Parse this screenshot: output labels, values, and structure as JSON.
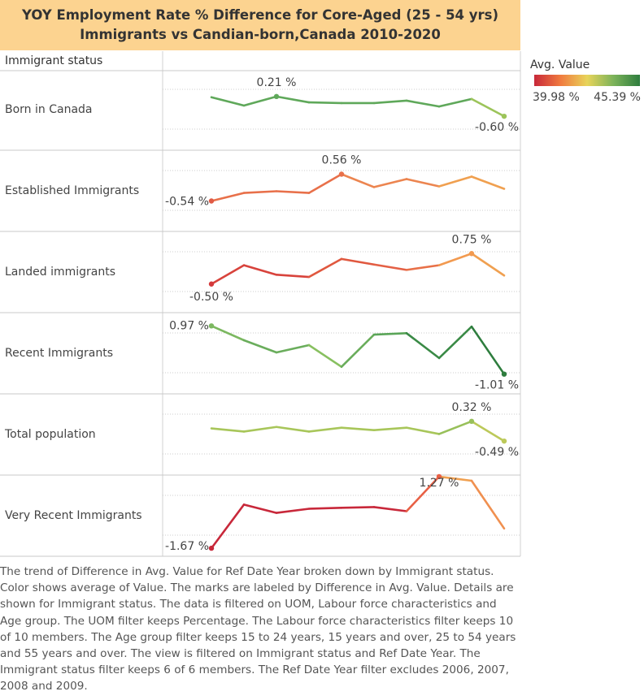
{
  "chart_data": {
    "type": "sparkline",
    "title": "YOY Employment Rate % Difference for Core-Aged (25 - 54 yrs) Immigrants vs Candian-born,Canada 2010-2020",
    "row_header": "Immigrant status",
    "description": "The trend of Difference in Avg. Value for Ref Date Year broken down by Immigrant status. Color shows average of Value.  The marks are labeled by Difference in Avg. Value.  Details are shown for Immigrant status. The data is filtered on UOM, Labour force characteristics and Age group. The UOM filter keeps Percentage. The Labour force characteristics filter keeps 10 of 10 members. The Age group filter keeps 15 to 24 years, 15 years and over, 25 to 54 years and 55 years and over. The view is filtered on Immigrant status and Ref Date Year. The Immigrant status filter keeps 6 of 6 members. The Ref Date Year filter excludes 2006, 2007, 2008 and 2009.",
    "legend": {
      "title": "Avg. Value",
      "colors": [
        "#c8283a",
        "#f07b3f",
        "#e8d45a",
        "#7cb35a",
        "#2e7d3e"
      ],
      "range": [
        {
          "value": 39.98,
          "label": "39.98 %"
        },
        {
          "value": 45.39,
          "label": "45.39 %"
        }
      ]
    },
    "series": [
      {
        "name": "Born in Canada",
        "values": [
          0.18,
          -0.16,
          0.21,
          -0.03,
          -0.06,
          -0.06,
          0.04,
          -0.2,
          0.11,
          -0.6
        ],
        "value_labels": [
          null,
          null,
          "0.21 %",
          null,
          null,
          null,
          null,
          null,
          null,
          "-0.60 %"
        ],
        "colors": [
          "#5fa85a",
          "#5fa85a",
          "#5fa85a",
          "#5fa85a",
          "#5fa85a",
          "#5fa85a",
          "#5fa85a",
          "#5fa85a",
          "#5fa85a",
          "#9cc45a"
        ]
      },
      {
        "name": "Established Immigrants",
        "values": [
          -0.54,
          -0.21,
          -0.14,
          -0.21,
          0.56,
          0.03,
          0.36,
          0.06,
          0.46,
          -0.04
        ],
        "value_labels": [
          "-0.54 %",
          null,
          null,
          null,
          "0.56 %",
          null,
          null,
          null,
          null,
          null
        ],
        "colors": [
          "#e05a45",
          "#e8704a",
          "#e8704a",
          "#e8704a",
          "#e8704a",
          "#ec8550",
          "#ec8550",
          "#ec8550",
          "#f0a050",
          "#f0a050"
        ]
      },
      {
        "name": "Landed immigrants",
        "values": [
          -0.5,
          0.27,
          -0.12,
          -0.21,
          0.53,
          0.3,
          0.08,
          0.27,
          0.75,
          -0.15
        ],
        "value_labels": [
          "-0.50 %",
          null,
          null,
          null,
          null,
          null,
          null,
          null,
          "0.75 %",
          null
        ],
        "colors": [
          "#d43a3c",
          "#d8433c",
          "#d8433c",
          "#d8433c",
          "#e0583f",
          "#e0583f",
          "#e46045",
          "#e87048",
          "#f29a50",
          "#f0a050"
        ]
      },
      {
        "name": "Recent Immigrants",
        "values": [
          0.97,
          0.38,
          -0.12,
          0.18,
          -0.71,
          0.61,
          0.67,
          -0.35,
          0.94,
          -1.01
        ],
        "value_labels": [
          "0.97 %",
          null,
          null,
          null,
          null,
          null,
          null,
          null,
          null,
          "-1.01 %"
        ],
        "colors": [
          "#7cb860",
          "#7cb860",
          "#6aad5c",
          "#6aad5c",
          "#88c060",
          "#6aad5c",
          "#5aa558",
          "#3a8a46",
          "#3a8a46",
          "#2e7d3e"
        ]
      },
      {
        "name": "Total population",
        "values": [
          0.03,
          -0.1,
          0.09,
          -0.1,
          0.06,
          -0.04,
          0.06,
          -0.2,
          0.32,
          -0.49
        ],
        "value_labels": [
          null,
          null,
          null,
          null,
          null,
          null,
          null,
          null,
          "0.32 %",
          "-0.49 %"
        ],
        "colors": [
          "#a8c65a",
          "#a8c65a",
          "#a8c65a",
          "#a8c65a",
          "#a8c65a",
          "#a8c65a",
          "#a8c65a",
          "#a8c65a",
          "#98c05a",
          "#bcc95a"
        ]
      },
      {
        "name": "Very Recent Immigrants",
        "values": [
          -1.67,
          0.12,
          -0.22,
          -0.05,
          -0.01,
          0.02,
          -0.15,
          1.27,
          1.1,
          -0.86
        ],
        "value_labels": [
          "-1.67 %",
          null,
          null,
          null,
          null,
          null,
          null,
          "1.27 %",
          null,
          null
        ],
        "colors": [
          "#c8283a",
          "#c8283a",
          "#c8283a",
          "#c8283a",
          "#c8283a",
          "#c8283a",
          "#c8283a",
          "#e86045",
          "#f0a050",
          "#f09050"
        ]
      }
    ]
  }
}
